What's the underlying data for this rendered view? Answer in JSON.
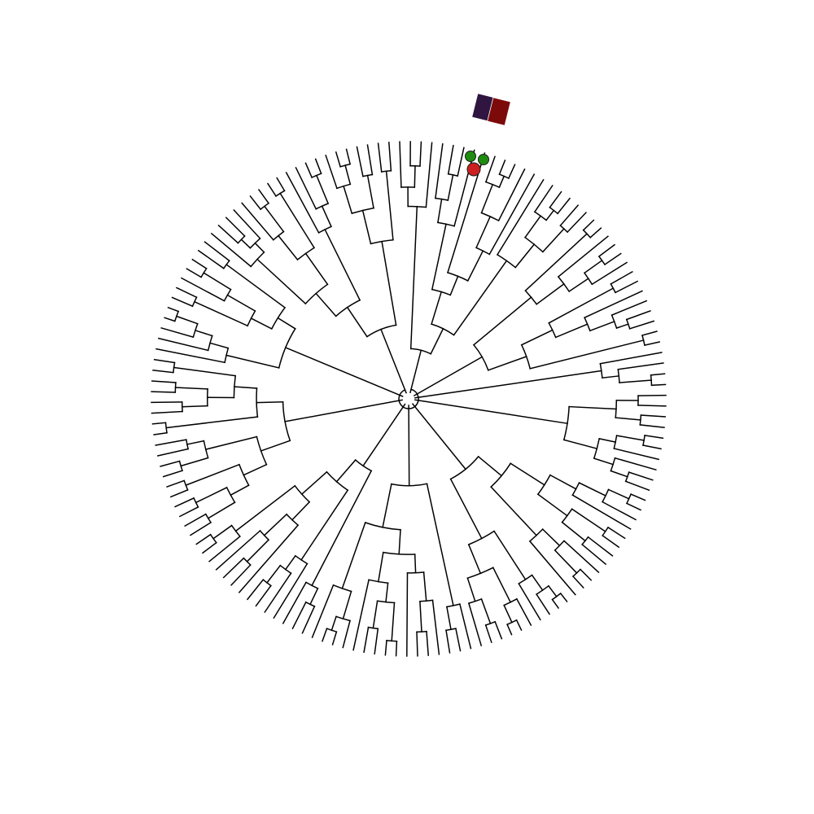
{
  "diagram": {
    "type": "circular-phylogenetic-tree",
    "tip_count": 150,
    "branch_color": "#000000",
    "background": "#ffffff",
    "highlighted_clade": {
      "tip_markers": [
        {
          "shape": "circle",
          "color": "#1e8c0f"
        },
        {
          "shape": "circle",
          "color": "#1e8c0f"
        },
        {
          "shape": "circle",
          "color": "#cc1f1f"
        }
      ],
      "annotation_strip": [
        {
          "shape": "square",
          "color": "#2f1540"
        },
        {
          "shape": "square",
          "color": "#7d0a0a"
        }
      ]
    }
  }
}
